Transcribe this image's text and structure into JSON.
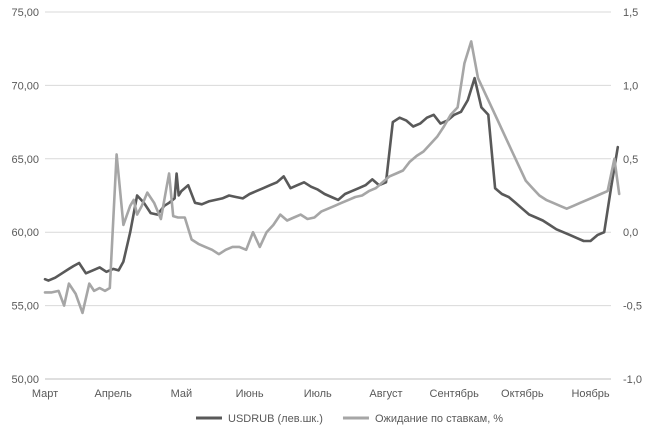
{
  "chart_data": {
    "type": "line",
    "categories": [
      "Март",
      "Апрель",
      "Май",
      "Июнь",
      "Июль",
      "Август",
      "Сентябрь",
      "Октябрь",
      "Ноябрь"
    ],
    "ylim_left": [
      50,
      75
    ],
    "ylim_right": [
      -1.0,
      1.5
    ],
    "yticks_left": [
      "50,00",
      "55,00",
      "60,00",
      "65,00",
      "70,00",
      "75,00"
    ],
    "yticks_right": [
      "-1,0",
      "-0,5",
      "0,0",
      "0,5",
      "1,0",
      "1,5"
    ],
    "grid": true,
    "legend_position": "bottom",
    "series": [
      {
        "name": "USDRUB (лев.шк.)",
        "axis": "left",
        "color": "#595959",
        "x": [
          0.0,
          0.05,
          0.15,
          0.25,
          0.35,
          0.42,
          0.5,
          0.6,
          0.7,
          0.8,
          0.9,
          1.0,
          1.08,
          1.15,
          1.25,
          1.35,
          1.45,
          1.55,
          1.65,
          1.75,
          1.82,
          1.9,
          1.93,
          1.96,
          2.0,
          2.1,
          2.2,
          2.3,
          2.4,
          2.5,
          2.6,
          2.7,
          2.8,
          2.9,
          3.0,
          3.1,
          3.2,
          3.3,
          3.4,
          3.5,
          3.6,
          3.7,
          3.8,
          3.9,
          4.0,
          4.1,
          4.2,
          4.3,
          4.4,
          4.5,
          4.6,
          4.7,
          4.8,
          4.9,
          5.0,
          5.1,
          5.2,
          5.3,
          5.4,
          5.5,
          5.6,
          5.7,
          5.8,
          5.9,
          6.0,
          6.1,
          6.2,
          6.3,
          6.4,
          6.5,
          6.6,
          6.7,
          6.8,
          6.9,
          7.0,
          7.1,
          7.2,
          7.3,
          7.4,
          7.5,
          7.6,
          7.7,
          7.8,
          7.9,
          8.0,
          8.1,
          8.2,
          8.3,
          8.4
        ],
        "values": [
          56.8,
          56.7,
          56.9,
          57.2,
          57.5,
          57.7,
          57.9,
          57.2,
          57.4,
          57.6,
          57.3,
          57.5,
          57.4,
          58.0,
          60.0,
          62.5,
          62.0,
          61.3,
          61.2,
          61.8,
          62.0,
          62.3,
          64.0,
          62.5,
          62.8,
          63.2,
          62.0,
          61.9,
          62.1,
          62.2,
          62.3,
          62.5,
          62.4,
          62.3,
          62.6,
          62.8,
          63.0,
          63.2,
          63.4,
          63.8,
          63.0,
          63.2,
          63.4,
          63.1,
          62.9,
          62.6,
          62.4,
          62.2,
          62.6,
          62.8,
          63.0,
          63.2,
          63.6,
          63.2,
          63.4,
          67.5,
          67.8,
          67.6,
          67.2,
          67.4,
          67.8,
          68.0,
          67.4,
          67.6,
          68.0,
          68.2,
          69.0,
          70.5,
          68.5,
          68.0,
          63.0,
          62.6,
          62.4,
          62.0,
          61.6,
          61.2,
          61.0,
          60.8,
          60.5,
          60.2,
          60.0,
          59.8,
          59.6,
          59.4,
          59.4,
          59.8,
          60.0,
          63.0,
          65.8
        ]
      },
      {
        "name": "Ожидание по ставкам, %",
        "axis": "right",
        "color": "#a6a6a6",
        "x": [
          0.0,
          0.1,
          0.2,
          0.28,
          0.35,
          0.45,
          0.55,
          0.65,
          0.72,
          0.8,
          0.88,
          0.95,
          1.05,
          1.15,
          1.25,
          1.3,
          1.35,
          1.42,
          1.5,
          1.6,
          1.7,
          1.78,
          1.82,
          1.88,
          1.95,
          2.05,
          2.15,
          2.25,
          2.35,
          2.45,
          2.55,
          2.65,
          2.75,
          2.85,
          2.95,
          3.05,
          3.15,
          3.25,
          3.35,
          3.45,
          3.55,
          3.65,
          3.75,
          3.85,
          3.95,
          4.05,
          4.15,
          4.25,
          4.35,
          4.45,
          4.55,
          4.65,
          4.75,
          4.85,
          4.95,
          5.05,
          5.15,
          5.25,
          5.35,
          5.45,
          5.55,
          5.65,
          5.75,
          5.85,
          5.95,
          6.05,
          6.15,
          6.25,
          6.35,
          6.45,
          6.55,
          6.65,
          6.75,
          6.85,
          6.95,
          7.05,
          7.15,
          7.25,
          7.35,
          7.45,
          7.55,
          7.65,
          7.75,
          7.85,
          7.95,
          8.05,
          8.15,
          8.25,
          8.35,
          8.42
        ],
        "values": [
          -0.41,
          -0.41,
          -0.4,
          -0.5,
          -0.35,
          -0.42,
          -0.55,
          -0.35,
          -0.4,
          -0.38,
          -0.4,
          -0.38,
          0.53,
          0.05,
          0.18,
          0.22,
          0.12,
          0.18,
          0.27,
          0.2,
          0.09,
          0.3,
          0.4,
          0.11,
          0.1,
          0.1,
          -0.05,
          -0.08,
          -0.1,
          -0.12,
          -0.15,
          -0.12,
          -0.1,
          -0.1,
          -0.12,
          0.0,
          -0.1,
          0.0,
          0.05,
          0.12,
          0.08,
          0.1,
          0.12,
          0.09,
          0.1,
          0.14,
          0.16,
          0.18,
          0.2,
          0.22,
          0.24,
          0.25,
          0.28,
          0.3,
          0.34,
          0.38,
          0.4,
          0.42,
          0.48,
          0.52,
          0.55,
          0.6,
          0.65,
          0.72,
          0.8,
          0.85,
          1.15,
          1.3,
          1.05,
          0.95,
          0.85,
          0.75,
          0.65,
          0.55,
          0.45,
          0.35,
          0.3,
          0.25,
          0.22,
          0.2,
          0.18,
          0.16,
          0.18,
          0.2,
          0.22,
          0.24,
          0.26,
          0.28,
          0.5,
          0.26
        ]
      }
    ]
  }
}
